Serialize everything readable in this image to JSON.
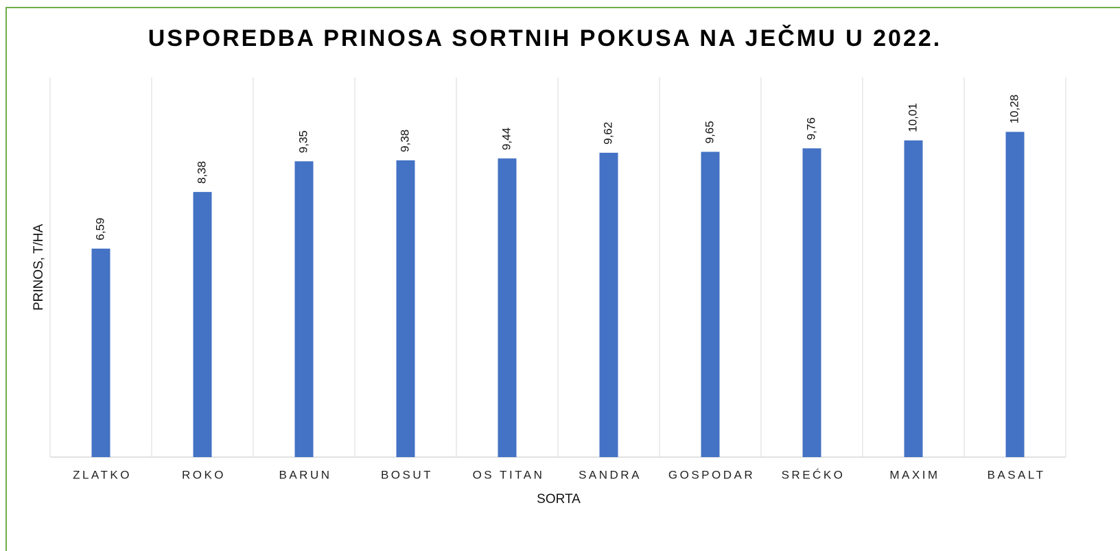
{
  "chart_data": {
    "type": "bar",
    "title": "USPOREDBA PRINOSA SORTNIH POKUSA NA JEČMU U 2022.",
    "x_label": "SORTA",
    "y_label": "PRINOS, T/HA",
    "categories": [
      "ZLATKO",
      "ROKO",
      "BARUN",
      "BOSUT",
      "OS TITAN",
      "SANDRA",
      "GOSPODAR",
      "SREĆKO",
      "MAXIM",
      "BASALT"
    ],
    "values": [
      6.59,
      8.38,
      9.35,
      9.38,
      9.44,
      9.62,
      9.65,
      9.76,
      10.01,
      10.28
    ],
    "value_labels": [
      "6,59",
      "8,38",
      "9,35",
      "9,38",
      "9,44",
      "9,62",
      "9,65",
      "9,76",
      "10,01",
      "10,28"
    ],
    "color": "#4472c4",
    "ylim": [
      0,
      12
    ]
  }
}
